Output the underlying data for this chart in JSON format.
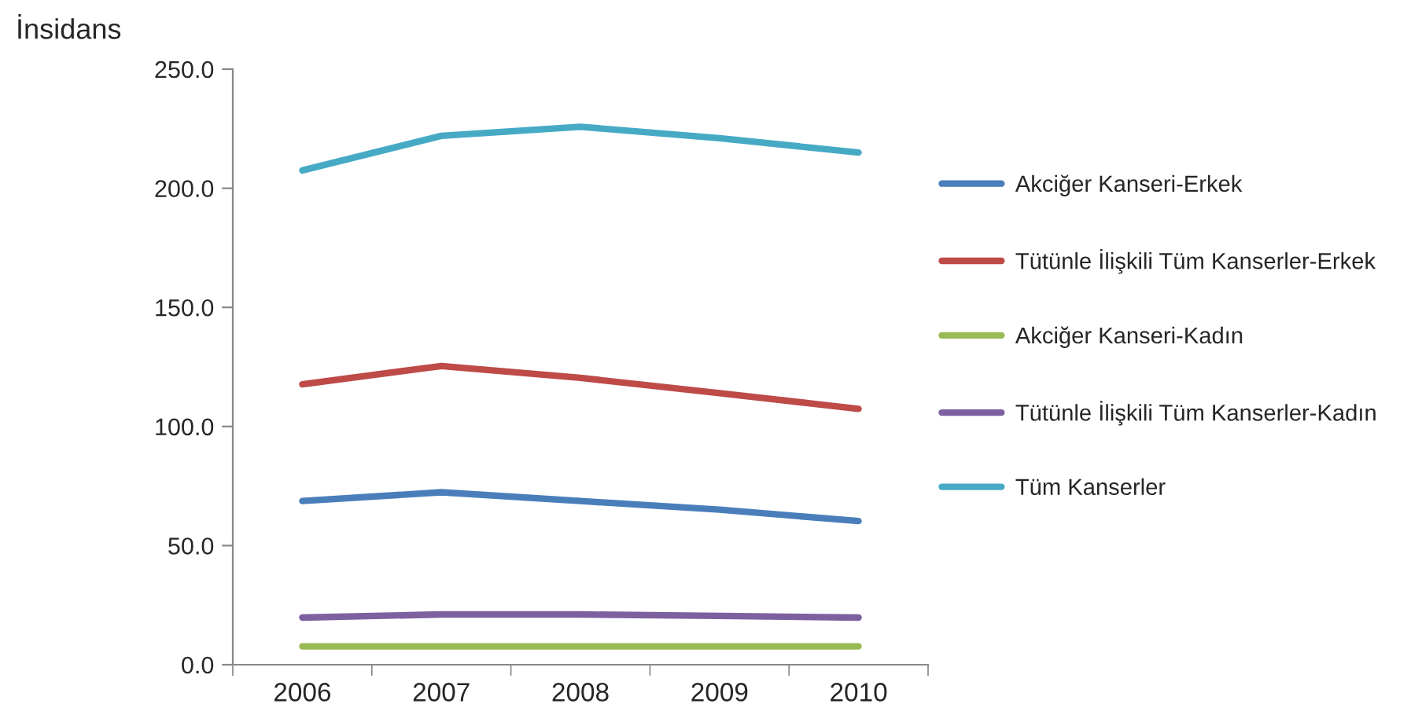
{
  "chart_data": {
    "type": "line",
    "ylabel": "İnsidans",
    "categories": [
      "2006",
      "2007",
      "2008",
      "2009",
      "2010"
    ],
    "series": [
      {
        "name": "Akciğer Kanseri-Erkek",
        "color": "#4a7ebb",
        "values": [
          68.7,
          72.4,
          68.7,
          65.1,
          60.3
        ]
      },
      {
        "name": "Tütünle İlişkili Tüm Kanserler-Erkek",
        "color": "#be4b48",
        "values": [
          117.7,
          125.4,
          120.4,
          114.0,
          107.4
        ]
      },
      {
        "name": "Akciğer Kanseri-Kadın",
        "color": "#98b954",
        "values": [
          7.7,
          7.7,
          7.7,
          7.7,
          7.7
        ]
      },
      {
        "name": "Tütünle İlişkili Tüm Kanserler-Kadın",
        "color": "#7d60a0",
        "values": [
          19.8,
          21.1,
          21.1,
          20.5,
          19.8
        ]
      },
      {
        "name": "Tüm Kanserler",
        "color": "#46aac5",
        "values": [
          207.5,
          222.0,
          225.8,
          221.0,
          215.0
        ]
      }
    ],
    "ylim": [
      0,
      250
    ],
    "yticks": [
      {
        "value": 0,
        "label": "0.0"
      },
      {
        "value": 50,
        "label": "50.0"
      },
      {
        "value": 100,
        "label": "100.0"
      },
      {
        "value": 150,
        "label": "150.0"
      },
      {
        "value": 200,
        "label": "200.0"
      },
      {
        "value": 250,
        "label": "250.0"
      }
    ],
    "grid": false,
    "legend": "right",
    "marker": "none",
    "line_style": "solid"
  }
}
